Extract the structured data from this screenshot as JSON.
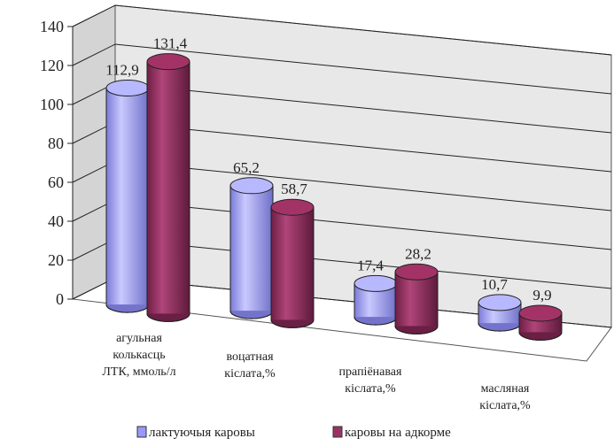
{
  "chart_data": {
    "type": "bar",
    "style": "3d-cylinder",
    "categories": [
      [
        "агульная",
        "колькасць",
        "ЛТК, ммоль/л"
      ],
      [
        "воцатная",
        "кiслата,%"
      ],
      [
        "прапiёнавая",
        "кiслата,%"
      ],
      [
        "масляная",
        "кiслата,%"
      ]
    ],
    "series": [
      {
        "name": "лактуючыя каровы",
        "values": [
          112.9,
          65.2,
          17.4,
          10.7
        ],
        "labels": [
          "112,9",
          "65,2",
          "17,4",
          "10,7"
        ],
        "color": "#9999ff"
      },
      {
        "name": "каровы на адкорме",
        "values": [
          131.4,
          58.7,
          28.2,
          9.9
        ],
        "labels": [
          "131,4",
          "58,7",
          "28,2",
          "9,9"
        ],
        "color": "#993366"
      }
    ],
    "ylim": [
      0,
      140
    ],
    "yticks": [
      0,
      20,
      40,
      60,
      80,
      100,
      120,
      140
    ],
    "grid": true,
    "legend": "bottom",
    "title": "",
    "xlabel": "",
    "ylabel": ""
  }
}
